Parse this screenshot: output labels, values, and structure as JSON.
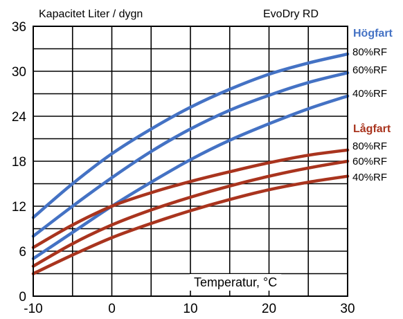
{
  "chart_data": {
    "type": "line",
    "title": "Kapacitet  Liter / dygn",
    "subtitle": "EvoDry RD",
    "xlabel": "Temperatur, °C",
    "ylabel": "",
    "xlim": [
      -10,
      30
    ],
    "ylim": [
      0,
      36
    ],
    "xticks": [
      "-10",
      "0",
      "10",
      "20",
      "30"
    ],
    "yticks": [
      "0",
      "6",
      "12",
      "18",
      "24",
      "30",
      "36"
    ],
    "grid": true,
    "colors": {
      "hogfart": "#4472C4",
      "lagfart": "#A9341E"
    },
    "groups": [
      {
        "name": "Högfart",
        "color": "#4472C4",
        "series": [
          {
            "name": "80%RF",
            "x": [
              -10,
              -5,
              0,
              5,
              10,
              15,
              20,
              25,
              30
            ],
            "values": [
              10.5,
              15.0,
              19.0,
              22.3,
              25.2,
              27.6,
              29.6,
              31.1,
              32.3
            ]
          },
          {
            "name": "60%RF",
            "x": [
              -10,
              -5,
              0,
              5,
              10,
              15,
              20,
              25,
              30
            ],
            "values": [
              8.0,
              12.0,
              15.8,
              19.3,
              22.3,
              24.8,
              26.8,
              28.5,
              29.8
            ]
          },
          {
            "name": "40%RF",
            "x": [
              -10,
              -5,
              0,
              5,
              10,
              15,
              20,
              25,
              30
            ],
            "values": [
              5.0,
              8.5,
              12.0,
              15.2,
              18.2,
              20.8,
              23.0,
              25.0,
              26.7
            ]
          }
        ]
      },
      {
        "name": "Lågfart",
        "color": "#A9341E",
        "series": [
          {
            "name": "80%RF",
            "x": [
              -10,
              -5,
              0,
              5,
              10,
              15,
              20,
              25,
              30
            ],
            "values": [
              6.5,
              9.5,
              12.0,
              13.8,
              15.3,
              16.6,
              17.8,
              18.8,
              19.5
            ]
          },
          {
            "name": "60%RF",
            "x": [
              -10,
              -5,
              0,
              5,
              10,
              15,
              20,
              25,
              30
            ],
            "values": [
              4.0,
              7.0,
              9.5,
              11.5,
              13.2,
              14.7,
              16.0,
              17.1,
              18.0
            ]
          },
          {
            "name": "40%RF",
            "x": [
              -10,
              -5,
              0,
              5,
              10,
              15,
              20,
              25,
              30
            ],
            "values": [
              3.0,
              5.5,
              7.8,
              9.7,
              11.4,
              12.9,
              14.2,
              15.2,
              16.0
            ]
          }
        ]
      }
    ]
  }
}
